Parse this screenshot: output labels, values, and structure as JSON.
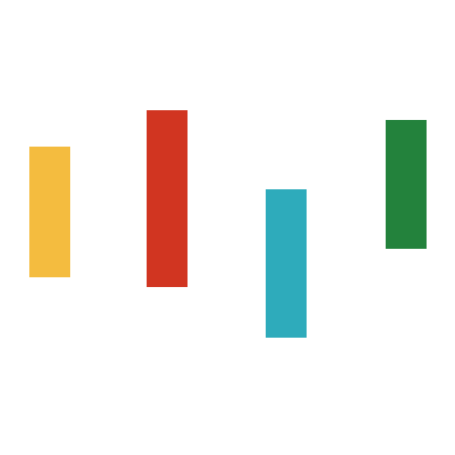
{
  "logo": {
    "bars": [
      {
        "name": "yellow",
        "color": "#F4BC3F"
      },
      {
        "name": "red",
        "color": "#D13521"
      },
      {
        "name": "teal",
        "color": "#2EABBB"
      },
      {
        "name": "green",
        "color": "#23823C"
      }
    ]
  }
}
